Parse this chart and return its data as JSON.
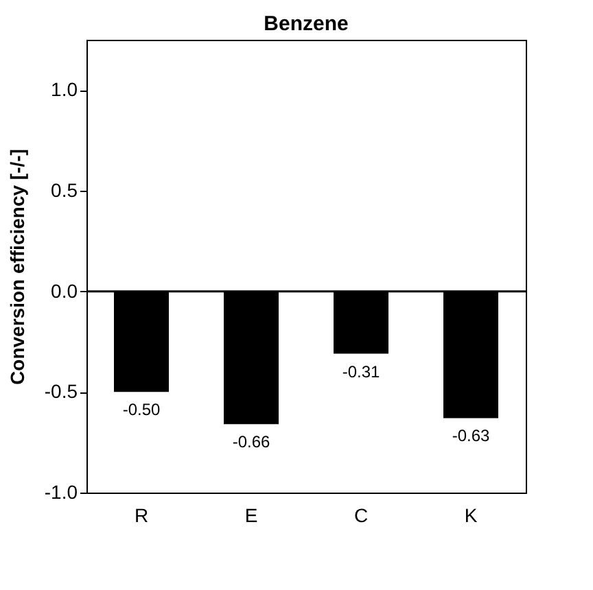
{
  "chart_data": {
    "type": "bar",
    "title": "Benzene",
    "ylabel": "Conversion efficiency [-/-]",
    "categories": [
      "R",
      "E",
      "C",
      "K"
    ],
    "values": [
      -0.5,
      -0.66,
      -0.31,
      -0.63
    ],
    "value_labels": [
      "-0.50",
      "-0.66",
      "-0.31",
      "-0.63"
    ],
    "color": "#000000",
    "ylim": [
      -1.0,
      1.25
    ],
    "yticks": [
      {
        "value": -1.0,
        "label": "-1.0"
      },
      {
        "value": -0.5,
        "label": "-0.5"
      },
      {
        "value": 0.0,
        "label": "0.0"
      },
      {
        "value": 0.5,
        "label": "0.5"
      },
      {
        "value": 1.0,
        "label": "1.0"
      }
    ],
    "ref_lines": [
      {
        "axis": "y",
        "value": 0.0,
        "color": "#000000"
      }
    ],
    "grid": false
  }
}
